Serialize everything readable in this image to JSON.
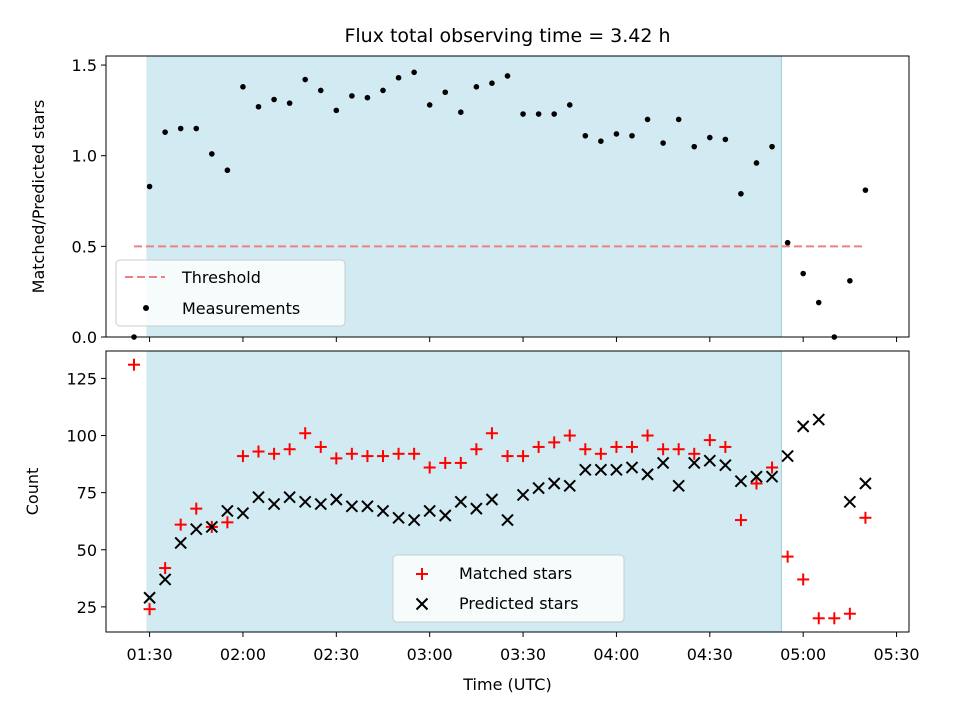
{
  "chart_data": [
    {
      "type": "scatter",
      "title": "Flux total observing time = 3.42 h",
      "xlabel": "",
      "ylabel": "Matched/Predicted stars",
      "xlim": [
        "01:16",
        "05:34"
      ],
      "ylim": [
        0,
        1.55
      ],
      "yticks": [
        0.0,
        0.5,
        1.0,
        1.5
      ],
      "ytick_labels": [
        "0.0",
        "0.5",
        "1.0",
        "1.5"
      ],
      "shaded_interval": [
        "01:29",
        "04:53"
      ],
      "shade_color": "#add8e6",
      "legend_position": "lower-left",
      "threshold": {
        "name": "Threshold",
        "y": 0.5,
        "x_range": [
          "01:25",
          "05:20"
        ],
        "color": "#f08080",
        "style": "dashed"
      },
      "series": [
        {
          "name": "Measurements",
          "marker": "dot",
          "color": "#000000",
          "x": [
            "01:25",
            "01:30",
            "01:35",
            "01:40",
            "01:45",
            "01:50",
            "01:55",
            "02:00",
            "02:05",
            "02:10",
            "02:15",
            "02:20",
            "02:25",
            "02:30",
            "02:35",
            "02:40",
            "02:45",
            "02:50",
            "02:55",
            "03:00",
            "03:05",
            "03:10",
            "03:15",
            "03:20",
            "03:25",
            "03:30",
            "03:35",
            "03:40",
            "03:45",
            "03:50",
            "03:55",
            "04:00",
            "04:05",
            "04:10",
            "04:15",
            "04:20",
            "04:25",
            "04:30",
            "04:35",
            "04:40",
            "04:45",
            "04:50",
            "04:55",
            "05:00",
            "05:05",
            "05:10",
            "05:15",
            "05:20"
          ],
          "y": [
            0.0,
            0.83,
            1.13,
            1.15,
            1.15,
            1.01,
            0.92,
            1.38,
            1.27,
            1.31,
            1.29,
            1.42,
            1.36,
            1.25,
            1.33,
            1.32,
            1.36,
            1.43,
            1.46,
            1.28,
            1.35,
            1.24,
            1.38,
            1.4,
            1.44,
            1.23,
            1.23,
            1.23,
            1.28,
            1.11,
            1.08,
            1.12,
            1.11,
            1.2,
            1.07,
            1.2,
            1.05,
            1.1,
            1.09,
            0.79,
            0.96,
            1.05,
            0.52,
            0.35,
            0.19,
            0.0,
            0.31,
            0.81
          ]
        }
      ]
    },
    {
      "type": "scatter",
      "title": "",
      "xlabel": "Time (UTC)",
      "ylabel": "Count",
      "xlim": [
        "01:16",
        "05:34"
      ],
      "ylim": [
        14,
        137
      ],
      "xticks": [
        "01:30",
        "02:00",
        "02:30",
        "03:00",
        "03:30",
        "04:00",
        "04:30",
        "05:00",
        "05:30"
      ],
      "yticks": [
        25,
        50,
        75,
        100,
        125
      ],
      "ytick_labels": [
        "25",
        "50",
        "75",
        "100",
        "125"
      ],
      "shaded_interval": [
        "01:29",
        "04:53"
      ],
      "shade_color": "#add8e6",
      "legend_position": "lower-center",
      "series": [
        {
          "name": "Matched stars",
          "marker": "plus",
          "color": "#ff0000",
          "x": [
            "01:25",
            "01:30",
            "01:35",
            "01:40",
            "01:45",
            "01:50",
            "01:55",
            "02:00",
            "02:05",
            "02:10",
            "02:15",
            "02:20",
            "02:25",
            "02:30",
            "02:35",
            "02:40",
            "02:45",
            "02:50",
            "02:55",
            "03:00",
            "03:05",
            "03:10",
            "03:15",
            "03:20",
            "03:25",
            "03:30",
            "03:35",
            "03:40",
            "03:45",
            "03:50",
            "03:55",
            "04:00",
            "04:05",
            "04:10",
            "04:15",
            "04:20",
            "04:25",
            "04:30",
            "04:35",
            "04:40",
            "04:45",
            "04:50",
            "04:55",
            "05:00",
            "05:05",
            "05:10",
            "05:15",
            "05:20"
          ],
          "y": [
            131,
            24,
            42,
            61,
            68,
            60,
            62,
            91,
            93,
            92,
            94,
            101,
            95,
            90,
            92,
            91,
            91,
            92,
            92,
            86,
            88,
            88,
            94,
            101,
            91,
            91,
            95,
            97,
            100,
            94,
            92,
            95,
            95,
            100,
            94,
            94,
            92,
            98,
            95,
            63,
            79,
            86,
            47,
            37,
            20,
            20,
            22,
            64
          ]
        },
        {
          "name": "Predicted stars",
          "marker": "x",
          "color": "#000000",
          "x": [
            "01:30",
            "01:35",
            "01:40",
            "01:45",
            "01:50",
            "01:55",
            "02:00",
            "02:05",
            "02:10",
            "02:15",
            "02:20",
            "02:25",
            "02:30",
            "02:35",
            "02:40",
            "02:45",
            "02:50",
            "02:55",
            "03:00",
            "03:05",
            "03:10",
            "03:15",
            "03:20",
            "03:25",
            "03:30",
            "03:35",
            "03:40",
            "03:45",
            "03:50",
            "03:55",
            "04:00",
            "04:05",
            "04:10",
            "04:15",
            "04:20",
            "04:25",
            "04:30",
            "04:35",
            "04:40",
            "04:45",
            "04:50",
            "04:55",
            "05:00",
            "05:05",
            "05:15",
            "05:20"
          ],
          "y": [
            29,
            37,
            53,
            59,
            60,
            67,
            66,
            73,
            70,
            73,
            71,
            70,
            72,
            69,
            69,
            67,
            64,
            63,
            67,
            65,
            71,
            68,
            72,
            63,
            74,
            77,
            79,
            78,
            85,
            85,
            85,
            86,
            83,
            88,
            78,
            88,
            89,
            87,
            80,
            82,
            82,
            91,
            104,
            107,
            71,
            79
          ]
        }
      ]
    }
  ]
}
